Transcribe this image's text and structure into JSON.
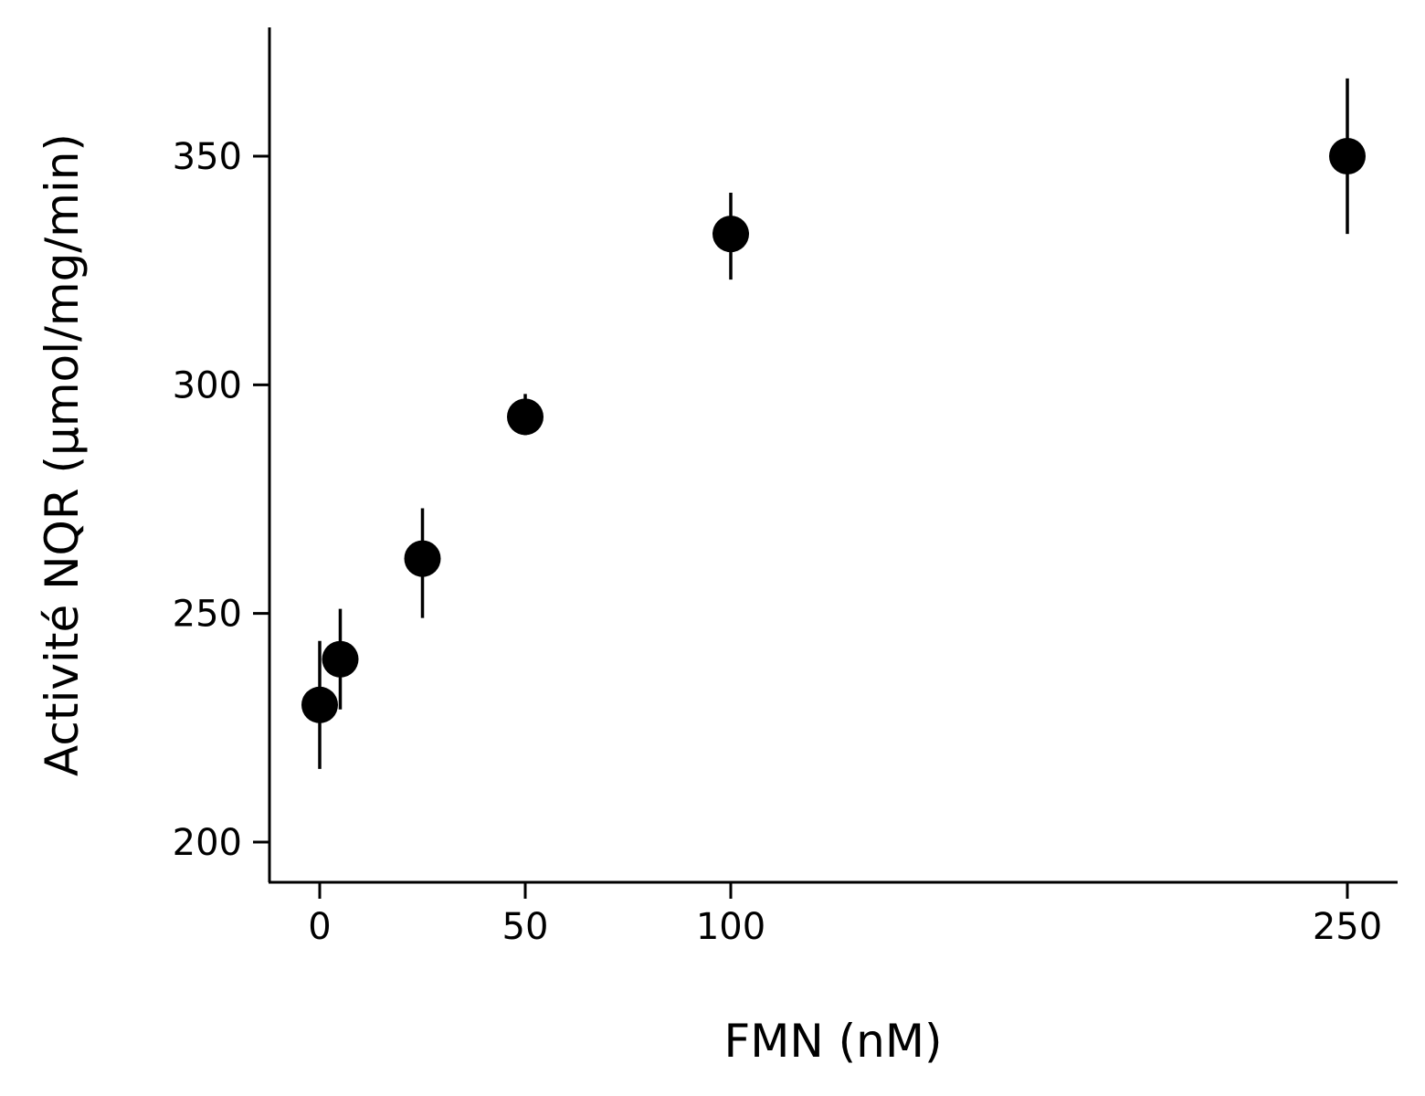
{
  "chart_data": {
    "type": "scatter",
    "title": "",
    "xlabel": "FMN (nM)",
    "ylabel": "Activité NQR (µmol/mg/min)",
    "x_ticks": [
      {
        "label": "0",
        "position": "0"
      },
      {
        "label": "50",
        "position": "1"
      },
      {
        "label": "100",
        "position": "2"
      },
      {
        "label": "250",
        "position": "5"
      }
    ],
    "y_ticks": [
      200,
      250,
      300,
      350
    ],
    "ylim": [
      191,
      378
    ],
    "x_scale": "piecewise: 0–100 nM linear, then gap to 250 nM",
    "grid": false,
    "series": [
      {
        "points": [
          {
            "x": 0,
            "y": 230,
            "err_low": 216,
            "err_high": 244
          },
          {
            "x": 5,
            "y": 240,
            "err_low": 229,
            "err_high": 251
          },
          {
            "x": 25,
            "y": 262,
            "err_low": 249,
            "err_high": 273
          },
          {
            "x": 50,
            "y": 293,
            "err_low": 289,
            "err_high": 298
          },
          {
            "x": 100,
            "y": 333,
            "err_low": 323,
            "err_high": 342
          },
          {
            "x": 250,
            "y": 350,
            "err_low": 333,
            "err_high": 367
          }
        ]
      }
    ]
  }
}
